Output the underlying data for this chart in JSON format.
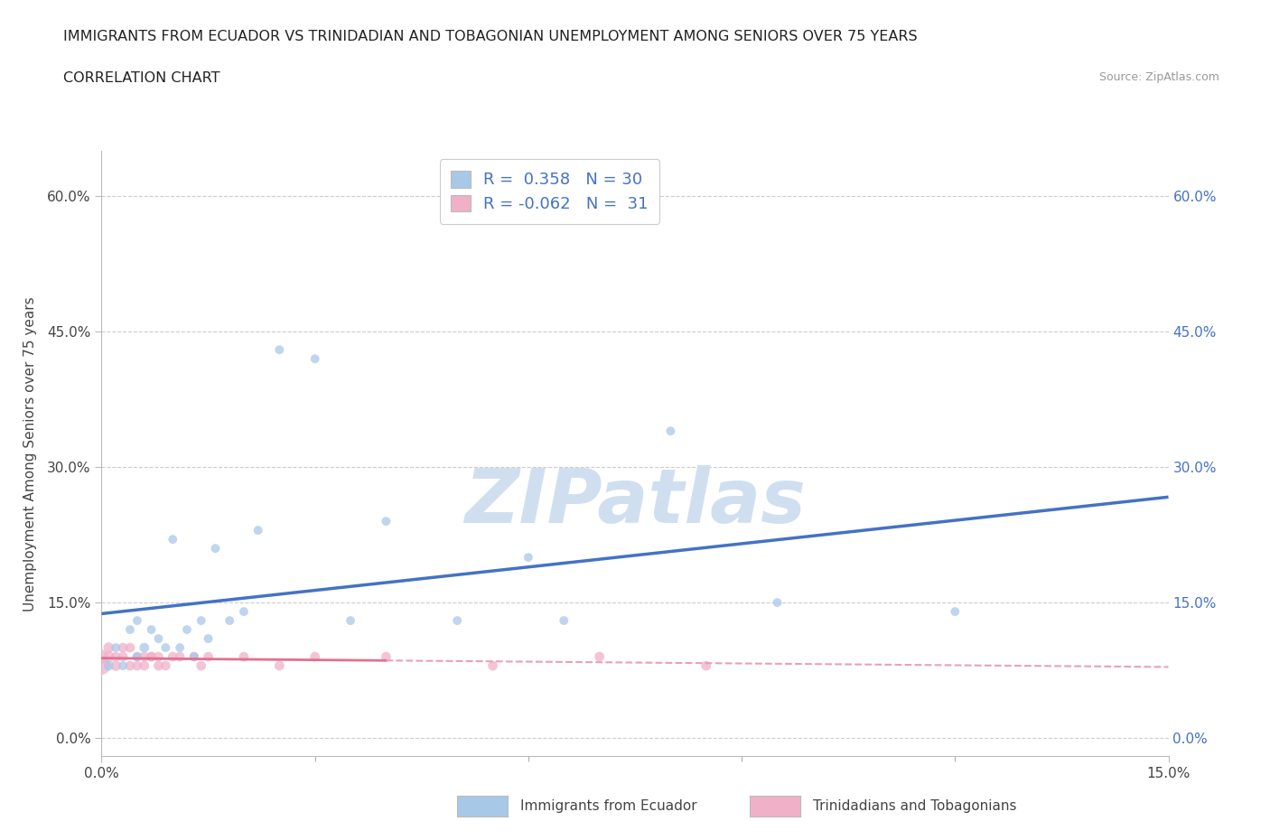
{
  "title": "IMMIGRANTS FROM ECUADOR VS TRINIDADIAN AND TOBAGONIAN UNEMPLOYMENT AMONG SENIORS OVER 75 YEARS",
  "subtitle": "CORRELATION CHART",
  "source": "Source: ZipAtlas.com",
  "ylabel": "Unemployment Among Seniors over 75 years",
  "xmin": 0.0,
  "xmax": 0.15,
  "ymin": -0.02,
  "ymax": 0.65,
  "yticks": [
    0.0,
    0.15,
    0.3,
    0.45,
    0.6
  ],
  "ytick_labels": [
    "0.0%",
    "15.0%",
    "30.0%",
    "45.0%",
    "60.0%"
  ],
  "r_ecuador": 0.358,
  "n_ecuador": 30,
  "r_trini": -0.062,
  "n_trini": 31,
  "color_ecuador": "#a8c8e8",
  "color_trini": "#f0b0c8",
  "line_ecuador": "#4472c4",
  "line_trini": "#e07090",
  "line_trini_dash": "#e8a0b8",
  "text_color": "#4472c4",
  "watermark_color": "#d0dff0",
  "ecuador_x": [
    0.001,
    0.002,
    0.003,
    0.004,
    0.005,
    0.005,
    0.006,
    0.007,
    0.008,
    0.009,
    0.01,
    0.011,
    0.012,
    0.013,
    0.014,
    0.015,
    0.016,
    0.018,
    0.02,
    0.022,
    0.025,
    0.03,
    0.035,
    0.04,
    0.05,
    0.06,
    0.065,
    0.08,
    0.095,
    0.12
  ],
  "ecuador_y": [
    0.08,
    0.1,
    0.08,
    0.12,
    0.09,
    0.13,
    0.1,
    0.12,
    0.11,
    0.1,
    0.22,
    0.1,
    0.12,
    0.09,
    0.13,
    0.11,
    0.21,
    0.13,
    0.14,
    0.23,
    0.43,
    0.42,
    0.13,
    0.24,
    0.13,
    0.2,
    0.13,
    0.34,
    0.15,
    0.14
  ],
  "ecuador_size": [
    60,
    50,
    50,
    50,
    50,
    50,
    60,
    50,
    50,
    50,
    50,
    50,
    50,
    50,
    50,
    50,
    50,
    50,
    50,
    50,
    50,
    50,
    50,
    50,
    50,
    50,
    50,
    50,
    50,
    50
  ],
  "trini_x": [
    0.0,
    0.0,
    0.001,
    0.001,
    0.002,
    0.002,
    0.003,
    0.003,
    0.004,
    0.004,
    0.005,
    0.005,
    0.006,
    0.006,
    0.007,
    0.007,
    0.008,
    0.008,
    0.009,
    0.01,
    0.011,
    0.013,
    0.014,
    0.015,
    0.02,
    0.025,
    0.03,
    0.04,
    0.055,
    0.07,
    0.085
  ],
  "trini_y": [
    0.08,
    0.09,
    0.09,
    0.1,
    0.08,
    0.09,
    0.09,
    0.1,
    0.08,
    0.1,
    0.09,
    0.08,
    0.09,
    0.08,
    0.09,
    0.09,
    0.08,
    0.09,
    0.08,
    0.09,
    0.09,
    0.09,
    0.08,
    0.09,
    0.09,
    0.08,
    0.09,
    0.09,
    0.08,
    0.09,
    0.08
  ],
  "trini_size": [
    200,
    120,
    80,
    70,
    70,
    60,
    60,
    60,
    60,
    60,
    60,
    60,
    60,
    60,
    60,
    60,
    60,
    60,
    60,
    60,
    60,
    60,
    60,
    60,
    60,
    60,
    60,
    60,
    60,
    60,
    60
  ]
}
